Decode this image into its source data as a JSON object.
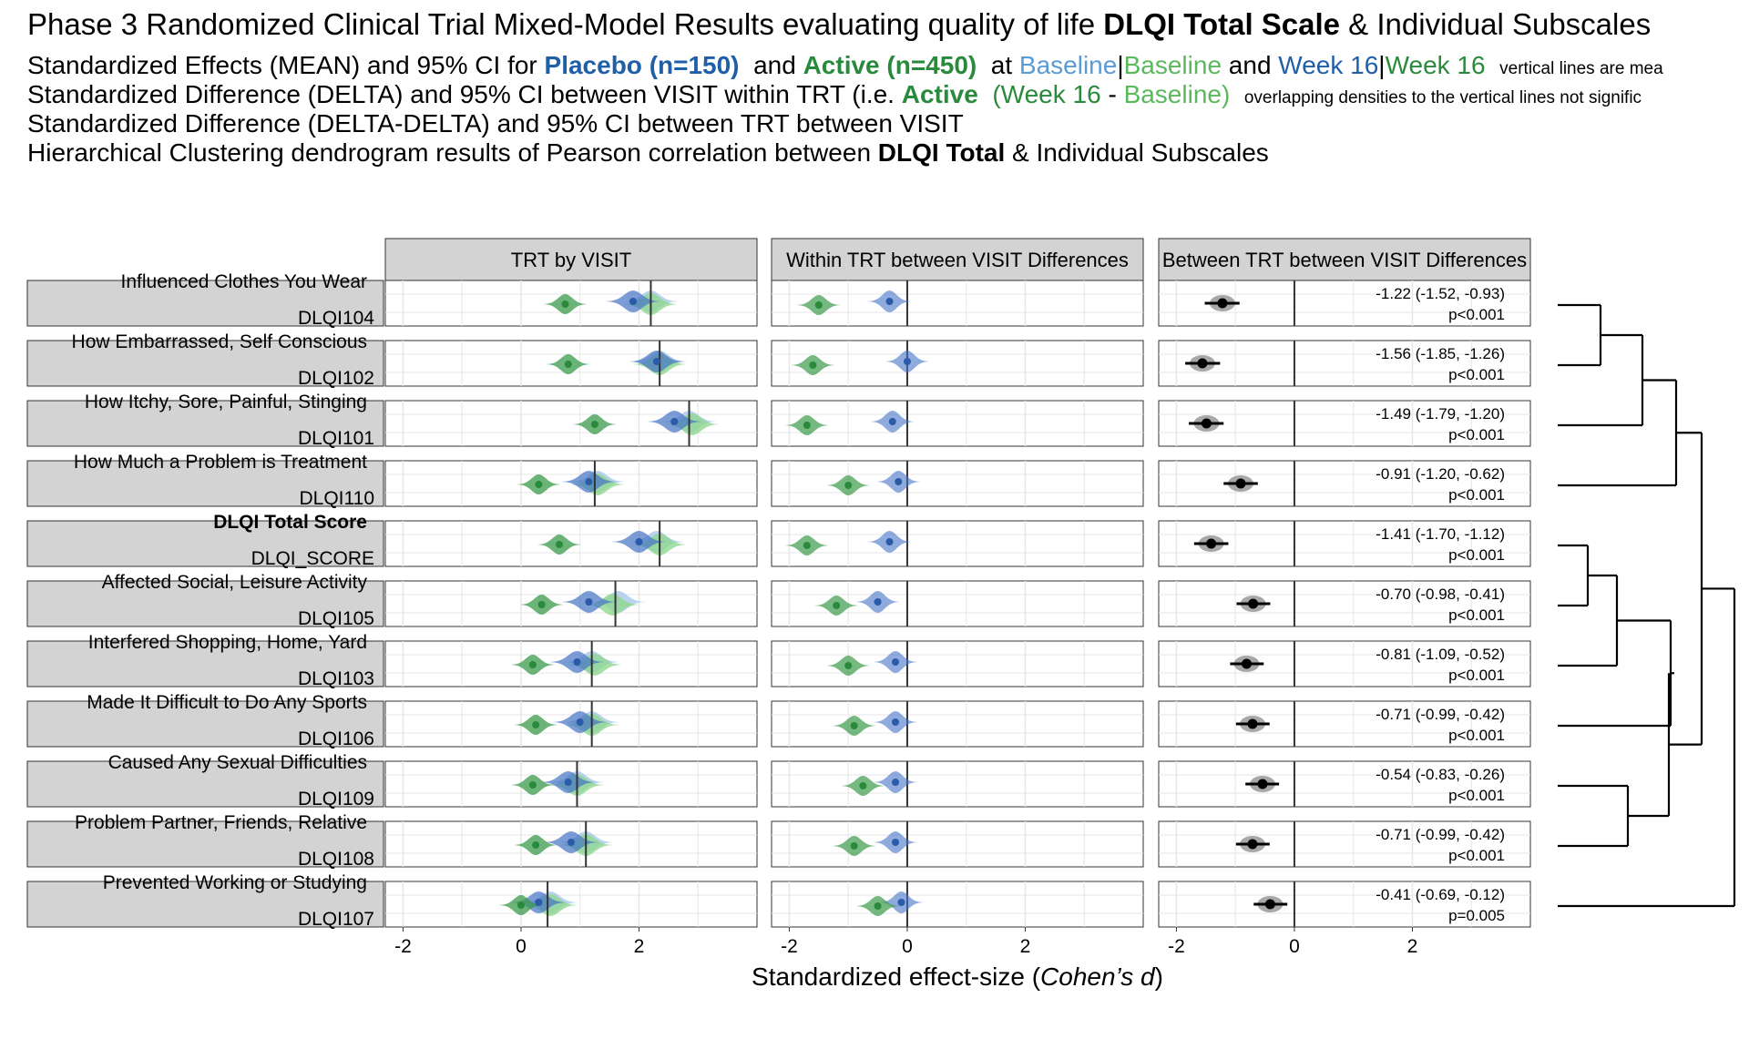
{
  "header": {
    "title_pre": "Phase 3 Randomized Clinical Trial Mixed-Model Results evaluating quality of life ",
    "title_bold": "DLQI Total Scale",
    "title_post": " & Individual Subscales",
    "line1_a": "Standardized Effects (MEAN) and 95% CI for ",
    "line1_placebo": "Placebo (n=150)",
    "line1_and": "and",
    "line1_active": "Active (n=450)",
    "line1_at": "at",
    "line1_baseline_placebo": "Baseline",
    "line1_sep": "|",
    "line1_baseline_active": "Baseline",
    "line1_and2": "and",
    "line1_week16_placebo": "Week 16",
    "line1_week16_active": "Week 16",
    "line1_note": "vertical lines are mea",
    "line2_a": "Standardized Difference (DELTA) and 95% CI between VISIT within TRT (i.e. ",
    "line2_active": "Active",
    "line2_week16": "(Week 16",
    "line2_dash": "-",
    "line2_baseline": "Baseline)",
    "line2_note": "overlapping densities to the vertical lines not signific",
    "line3": "Standardized Difference (DELTA-DELTA) and 95% CI between TRT between VISIT",
    "line4_pre": "Hierarchical Clustering dendrogram results of Pearson correlation between ",
    "line4_bold": "DLQI Total",
    "line4_post": " & Individual Subscales"
  },
  "panels": {
    "strip_titles": [
      "TRT by VISIT",
      "Within TRT between VISIT Differences",
      "Between TRT between VISIT Differences"
    ],
    "x_ticks": [
      -2,
      0,
      2
    ],
    "x_tick_labels": [
      "-2",
      "0",
      "2"
    ],
    "xlim": [
      -2.3,
      4.0
    ],
    "x_axis_label_pre": "Standardized effect-size (",
    "x_axis_label_italic": "Cohen’s d",
    "x_axis_label_post": ")"
  },
  "colors": {
    "placebo_baseline": "#a9c8ea",
    "placebo_week16": "#4472c4",
    "active_baseline": "#90d890",
    "active_week16": "#3a9a4a",
    "strip_bg": "#d3d3d3",
    "grid": "#e6e6e6",
    "ci_gray": "#999999"
  },
  "chart_data": {
    "type": "forest-density",
    "rows": [
      {
        "label": "Influenced Clothes You Wear",
        "code": "DLQI104",
        "bold": false,
        "placebo_baseline": 2.2,
        "placebo_week16": 1.9,
        "active_baseline": 2.2,
        "active_week16": 0.75,
        "placebo_delta": -0.3,
        "active_delta": -1.5,
        "mean_line_1": 2.2,
        "mean_line_2": 0,
        "dd": -1.22,
        "dd_ci": [
          -1.52,
          -0.93
        ],
        "dd_text": "-1.22 (-1.52, -0.93)",
        "p_text": "p<0.001"
      },
      {
        "label": "How Embarrassed, Self Conscious",
        "code": "DLQI102",
        "bold": false,
        "placebo_baseline": 2.35,
        "placebo_week16": 2.3,
        "active_baseline": 2.35,
        "active_week16": 0.8,
        "placebo_delta": 0.0,
        "active_delta": -1.6,
        "mean_line_1": 2.35,
        "mean_line_2": 0,
        "dd": -1.56,
        "dd_ci": [
          -1.85,
          -1.26
        ],
        "dd_text": "-1.56 (-1.85, -1.26)",
        "p_text": "p<0.001"
      },
      {
        "label": "How Itchy, Sore, Painful, Stinging",
        "code": "DLQI101",
        "bold": false,
        "placebo_baseline": 2.85,
        "placebo_week16": 2.6,
        "active_baseline": 2.9,
        "active_week16": 1.25,
        "placebo_delta": -0.25,
        "active_delta": -1.7,
        "mean_line_1": 2.85,
        "mean_line_2": 0,
        "dd": -1.49,
        "dd_ci": [
          -1.79,
          -1.2
        ],
        "dd_text": "-1.49 (-1.79, -1.20)",
        "p_text": "p<0.001"
      },
      {
        "label": "How Much a Problem is Treatment",
        "code": "DLQI110",
        "bold": false,
        "placebo_baseline": 1.3,
        "placebo_week16": 1.15,
        "active_baseline": 1.3,
        "active_week16": 0.3,
        "placebo_delta": -0.15,
        "active_delta": -1.0,
        "mean_line_1": 1.25,
        "mean_line_2": 0,
        "dd": -0.91,
        "dd_ci": [
          -1.2,
          -0.62
        ],
        "dd_text": "-0.91 (-1.20, -0.62)",
        "p_text": "p<0.001"
      },
      {
        "label": "DLQI Total Score",
        "code": "DLQI_SCORE",
        "bold": true,
        "placebo_baseline": 2.3,
        "placebo_week16": 2.0,
        "active_baseline": 2.35,
        "active_week16": 0.65,
        "placebo_delta": -0.3,
        "active_delta": -1.7,
        "mean_line_1": 2.35,
        "mean_line_2": 0,
        "dd": -1.41,
        "dd_ci": [
          -1.7,
          -1.12
        ],
        "dd_text": "-1.41 (-1.70, -1.12)",
        "p_text": "p<0.001"
      },
      {
        "label": "Affected Social, Leisure Activity",
        "code": "DLQI105",
        "bold": false,
        "placebo_baseline": 1.65,
        "placebo_week16": 1.15,
        "active_baseline": 1.55,
        "active_week16": 0.35,
        "placebo_delta": -0.5,
        "active_delta": -1.2,
        "mean_line_1": 1.6,
        "mean_line_2": 0,
        "dd": -0.7,
        "dd_ci": [
          -0.98,
          -0.41
        ],
        "dd_text": "-0.70 (-0.98, -0.41)",
        "p_text": "p<0.001"
      },
      {
        "label": "Interfered Shopping, Home, Yard",
        "code": "DLQI103",
        "bold": false,
        "placebo_baseline": 1.2,
        "placebo_week16": 0.95,
        "active_baseline": 1.25,
        "active_week16": 0.2,
        "placebo_delta": -0.2,
        "active_delta": -1.0,
        "mean_line_1": 1.2,
        "mean_line_2": 0,
        "dd": -0.81,
        "dd_ci": [
          -1.09,
          -0.52
        ],
        "dd_text": "-0.81 (-1.09, -0.52)",
        "p_text": "p<0.001"
      },
      {
        "label": "Made It Difficult to Do Any Sports",
        "code": "DLQI106",
        "bold": false,
        "placebo_baseline": 1.2,
        "placebo_week16": 1.0,
        "active_baseline": 1.2,
        "active_week16": 0.25,
        "placebo_delta": -0.2,
        "active_delta": -0.9,
        "mean_line_1": 1.2,
        "mean_line_2": 0,
        "dd": -0.71,
        "dd_ci": [
          -0.99,
          -0.42
        ],
        "dd_text": "-0.71 (-0.99, -0.42)",
        "p_text": "p<0.001"
      },
      {
        "label": "Caused Any Sexual Difficulties",
        "code": "DLQI109",
        "bold": false,
        "placebo_baseline": 0.95,
        "placebo_week16": 0.8,
        "active_baseline": 0.95,
        "active_week16": 0.2,
        "placebo_delta": -0.2,
        "active_delta": -0.75,
        "mean_line_1": 0.95,
        "mean_line_2": 0,
        "dd": -0.54,
        "dd_ci": [
          -0.83,
          -0.26
        ],
        "dd_text": "-0.54 (-0.83, -0.26)",
        "p_text": "p<0.001"
      },
      {
        "label": "Problem Partner, Friends, Relative",
        "code": "DLQI108",
        "bold": false,
        "placebo_baseline": 1.1,
        "placebo_week16": 0.85,
        "active_baseline": 1.1,
        "active_week16": 0.25,
        "placebo_delta": -0.2,
        "active_delta": -0.9,
        "mean_line_1": 1.1,
        "mean_line_2": 0,
        "dd": -0.71,
        "dd_ci": [
          -0.99,
          -0.42
        ],
        "dd_text": "-0.71 (-0.99, -0.42)",
        "p_text": "p<0.001"
      },
      {
        "label": "Prevented Working or Studying",
        "code": "DLQI107",
        "bold": false,
        "placebo_baseline": 0.5,
        "placebo_week16": 0.3,
        "active_baseline": 0.5,
        "active_week16": 0.0,
        "placebo_delta": -0.1,
        "active_delta": -0.5,
        "mean_line_1": 0.45,
        "mean_line_2": 0,
        "dd": -0.41,
        "dd_ci": [
          -0.69,
          -0.12
        ],
        "dd_text": "-0.41 (-0.69, -0.12)",
        "p_text": "p=0.005"
      }
    ],
    "dendrogram_groups": [
      [
        0,
        1,
        2,
        3
      ],
      [
        4,
        5,
        6,
        7
      ],
      [
        8,
        9
      ],
      [
        10
      ]
    ]
  }
}
